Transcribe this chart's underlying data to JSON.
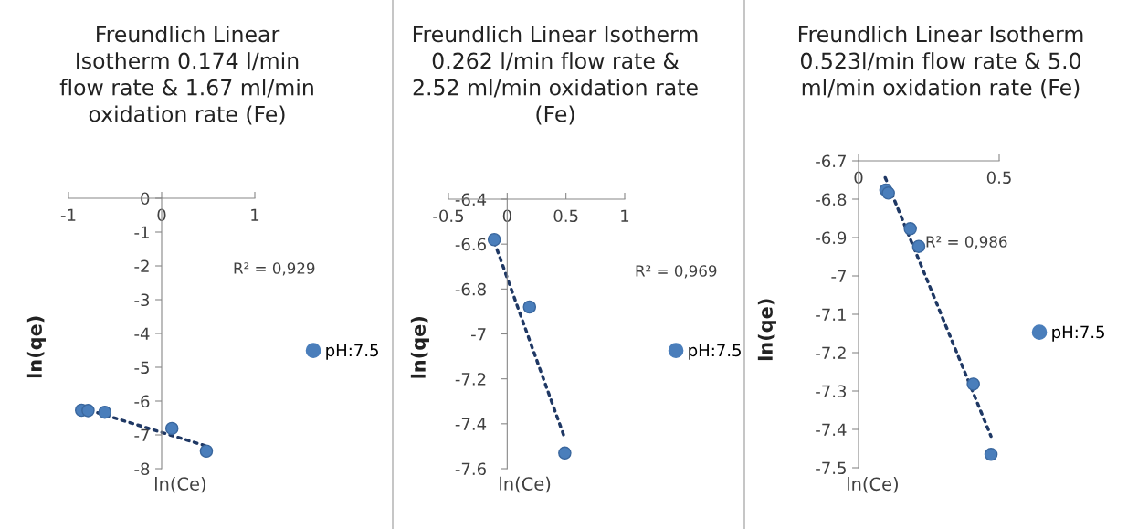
{
  "chart_data": [
    {
      "type": "scatter",
      "title": "Freundlich Linear\nIsotherm 0.174 l/min\nflow rate & 1.67 ml/min\noxidation rate (Fe)",
      "xlabel": "ln(Ce)",
      "ylabel": "ln(qe)",
      "xlim": [
        -1,
        1
      ],
      "xticks": [
        -1,
        0,
        1
      ],
      "ylim": [
        -8,
        0
      ],
      "yticks": [
        -8,
        -7,
        -6,
        -5,
        -4,
        -3,
        -2,
        -1,
        0
      ],
      "legend": "right",
      "grid": false,
      "annotations": [
        "R² = 0,929"
      ],
      "series": [
        {
          "name": "pH:7.5",
          "color": "#4a7ebb",
          "marker": "circle",
          "x": [
            -0.86,
            -0.79,
            -0.61,
            0.11,
            0.48
          ],
          "values": [
            -6.27,
            -6.28,
            -6.33,
            -6.81,
            -7.48
          ]
        },
        {
          "type": "line",
          "color": "#1f3864",
          "line_style": "dotted",
          "x": [
            -0.86,
            0.48
          ],
          "values": [
            -6.2,
            -7.33
          ]
        }
      ]
    },
    {
      "type": "scatter",
      "title": "Freundlich Linear Isotherm\n0.262 l/min flow rate &\n2.52 ml/min oxidation rate\n(Fe)",
      "xlabel": "ln(Ce)",
      "ylabel": "ln(qe)",
      "xlim": [
        -0.5,
        1
      ],
      "xticks": [
        -0.5,
        0,
        0.5,
        1
      ],
      "ylim": [
        -7.6,
        -6.4
      ],
      "yticks": [
        -7.6,
        -7.4,
        -7.2,
        -7,
        -6.8,
        -6.6,
        -6.4
      ],
      "legend": "right",
      "grid": false,
      "annotations": [
        "R² = 0,969"
      ],
      "series": [
        {
          "name": "pH:7.5",
          "color": "#4a7ebb",
          "marker": "circle",
          "x": [
            -0.11,
            0.19,
            0.49
          ],
          "values": [
            -6.58,
            -6.88,
            -7.53
          ]
        },
        {
          "type": "line",
          "color": "#1f3864",
          "line_style": "dotted",
          "x": [
            -0.11,
            0.48
          ],
          "values": [
            -6.59,
            -7.45
          ]
        }
      ]
    },
    {
      "type": "scatter",
      "title": "Freundlich Linear Isotherm\n0.523l/min flow rate & 5.0\nml/min oxidation rate (Fe)",
      "xlabel": "ln(Ce)",
      "ylabel": "ln(qe)",
      "xlim": [
        0,
        0.5
      ],
      "xticks": [
        0,
        0.5
      ],
      "ylim": [
        -7.5,
        -6.7
      ],
      "yticks": [
        -7.5,
        -7.4,
        -7.3,
        -7.2,
        -7.1,
        -7,
        -6.9,
        -6.8,
        -6.7
      ],
      "legend": "right",
      "grid": false,
      "annotations": [
        "R² = 0,986"
      ],
      "series": [
        {
          "name": "pH:7.5",
          "color": "#4a7ebb",
          "marker": "circle",
          "x": [
            0.097,
            0.106,
            0.184,
            0.214,
            0.408,
            0.471
          ],
          "values": [
            -6.776,
            -6.784,
            -6.877,
            -6.923,
            -7.282,
            -7.465
          ]
        },
        {
          "type": "line",
          "color": "#1f3864",
          "line_style": "dotted",
          "x": [
            0.095,
            0.471
          ],
          "values": [
            -6.744,
            -7.418
          ]
        }
      ]
    }
  ]
}
